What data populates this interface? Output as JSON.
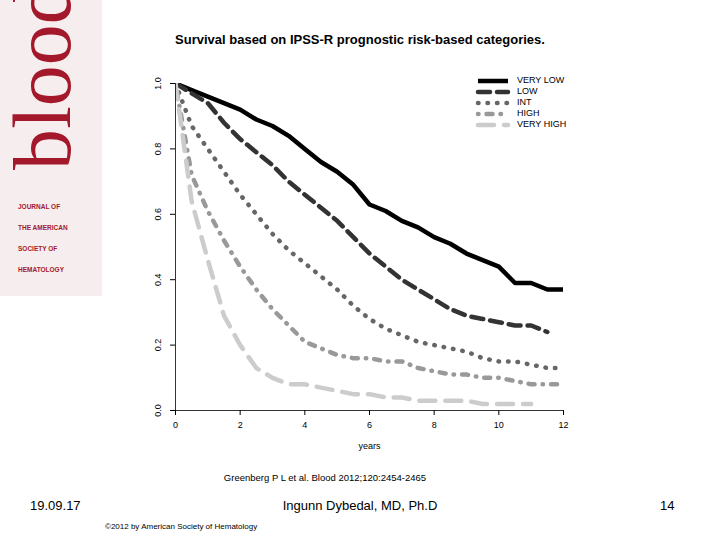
{
  "chart_data": {
    "type": "line",
    "title": "Survival based on IPSS-R prognostic risk-based categories.",
    "xlabel": "years",
    "x": [
      0,
      0.5,
      1,
      1.5,
      2,
      2.5,
      3,
      3.5,
      4,
      4.5,
      5,
      5.5,
      6,
      6.5,
      7,
      7.5,
      8,
      8.5,
      9,
      9.5,
      10,
      10.5,
      11,
      11.5,
      12
    ],
    "series": [
      {
        "name": "VERY LOW",
        "color": "#000000",
        "line_style": "solid",
        "values": [
          1.0,
          0.98,
          0.96,
          0.94,
          0.92,
          0.89,
          0.87,
          0.84,
          0.8,
          0.76,
          0.73,
          0.69,
          0.63,
          0.61,
          0.58,
          0.56,
          0.53,
          0.51,
          0.48,
          0.46,
          0.44,
          0.39,
          0.39,
          0.37,
          0.37
        ]
      },
      {
        "name": "LOW",
        "color": "#333333",
        "line_style": "dashed",
        "values": [
          1.0,
          0.97,
          0.94,
          0.88,
          0.83,
          0.79,
          0.75,
          0.7,
          0.66,
          0.62,
          0.58,
          0.53,
          0.48,
          0.44,
          0.4,
          0.37,
          0.34,
          0.31,
          0.29,
          0.28,
          0.27,
          0.26,
          0.26,
          0.24,
          null
        ]
      },
      {
        "name": "INT",
        "color": "#666666",
        "line_style": "dotted",
        "values": [
          1.0,
          0.87,
          0.8,
          0.73,
          0.66,
          0.6,
          0.54,
          0.49,
          0.45,
          0.41,
          0.37,
          0.32,
          0.28,
          0.25,
          0.23,
          0.21,
          0.2,
          0.19,
          0.18,
          0.16,
          0.15,
          0.15,
          0.14,
          0.13,
          0.13
        ]
      },
      {
        "name": "HIGH",
        "color": "#999999",
        "line_style": "dashdot",
        "values": [
          1.0,
          0.72,
          0.61,
          0.52,
          0.44,
          0.37,
          0.31,
          0.26,
          0.21,
          0.19,
          0.17,
          0.16,
          0.16,
          0.15,
          0.15,
          0.13,
          0.12,
          0.11,
          0.11,
          0.1,
          0.1,
          0.09,
          0.08,
          0.08,
          0.08
        ]
      },
      {
        "name": "VERY HIGH",
        "color": "#cccccc",
        "line_style": "longdash",
        "values": [
          1.0,
          0.64,
          0.46,
          0.29,
          0.2,
          0.13,
          0.1,
          0.08,
          0.08,
          0.07,
          0.06,
          0.05,
          0.05,
          0.04,
          0.04,
          0.03,
          0.03,
          0.03,
          0.03,
          0.02,
          0.02,
          0.02,
          0.02,
          null,
          null
        ]
      }
    ],
    "xlim": [
      0,
      12
    ],
    "xticks": [
      0,
      2,
      4,
      6,
      8,
      10,
      12
    ],
    "ylim": [
      0,
      1
    ],
    "yticks": [
      {
        "value": 0,
        "label": "0.0"
      },
      {
        "value": 0.2,
        "label": "0.2"
      },
      {
        "value": 0.4,
        "label": "0.4"
      },
      {
        "value": 0.6,
        "label": "0.6"
      },
      {
        "value": 0.8,
        "label": "0.8"
      },
      {
        "value": 1,
        "label": "1.0"
      }
    ],
    "grid": false,
    "legend": "top-right",
    "source": "Greenberg P L et al. Blood 2012;120:2454-2465"
  },
  "slide": {
    "logo": {
      "word": "blood",
      "lines": [
        "JOURNAL OF",
        "THE AMERICAN",
        "SOCIETY OF",
        "HEMATOLOGY"
      ]
    },
    "date": "19.09.17",
    "author": "Ingunn Dybedal, MD, Ph.D",
    "page": "14",
    "copyright": "©2012 by American Society of Hematology"
  }
}
